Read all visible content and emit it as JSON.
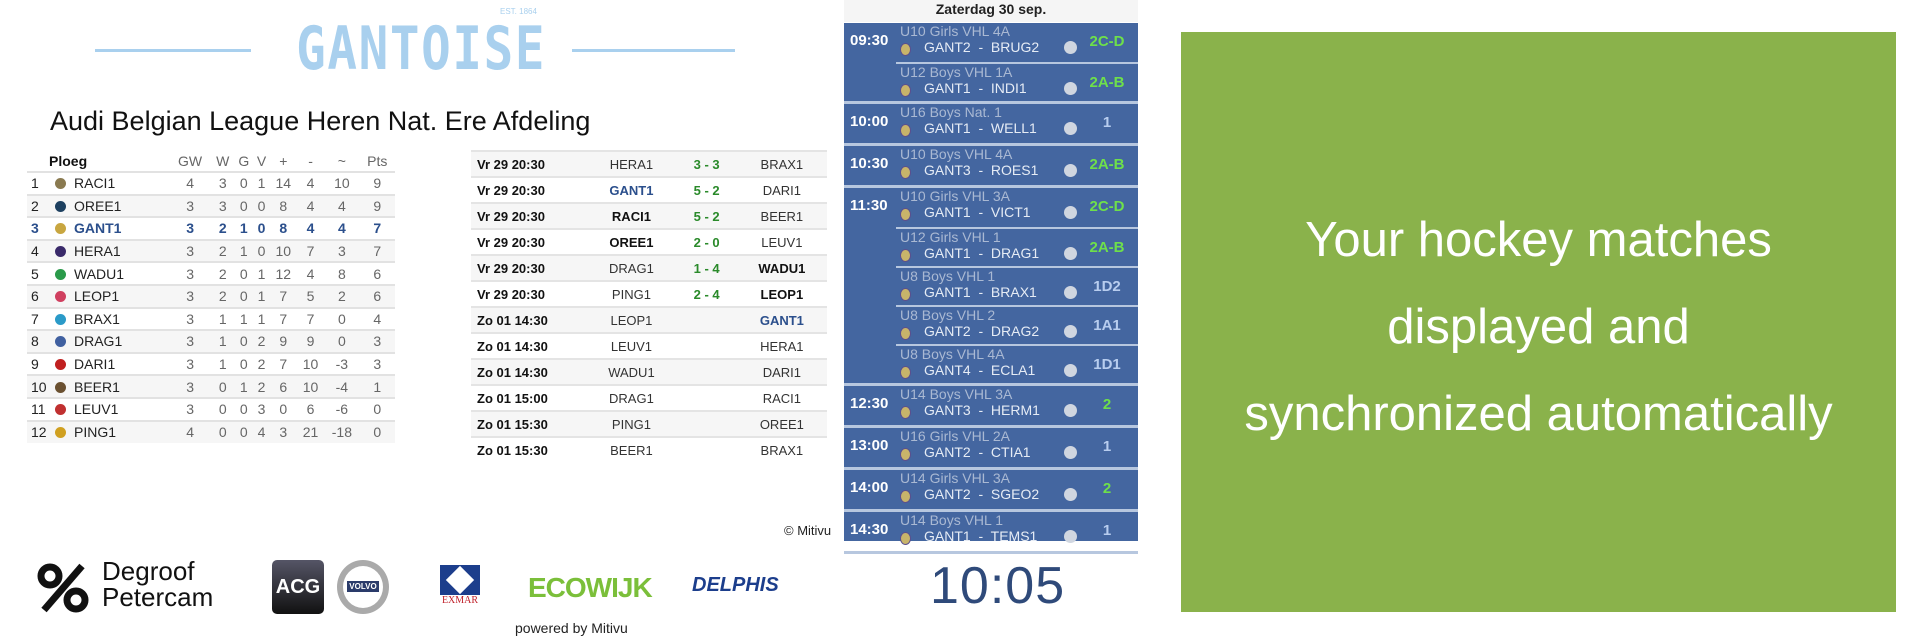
{
  "header": {
    "logo_text": "GANTOISE",
    "logo_est": "EST. 1864",
    "league_title": "Audi Belgian League Heren Nat. Ere Afdeling"
  },
  "standings": {
    "columns": [
      "Ploeg",
      "GW",
      "W",
      "G",
      "V",
      "+",
      "-",
      "~",
      "Pts"
    ],
    "highlight_team": "GANT1",
    "rows": [
      [
        "1",
        "RACI1",
        "4",
        "3",
        "0",
        "1",
        "14",
        "4",
        "10",
        "9"
      ],
      [
        "2",
        "OREE1",
        "3",
        "3",
        "0",
        "0",
        "8",
        "4",
        "4",
        "9"
      ],
      [
        "3",
        "GANT1",
        "3",
        "2",
        "1",
        "0",
        "8",
        "4",
        "4",
        "7"
      ],
      [
        "4",
        "HERA1",
        "3",
        "2",
        "1",
        "0",
        "10",
        "7",
        "3",
        "7"
      ],
      [
        "5",
        "WADU1",
        "3",
        "2",
        "0",
        "1",
        "12",
        "4",
        "8",
        "6"
      ],
      [
        "6",
        "LEOP1",
        "3",
        "2",
        "0",
        "1",
        "7",
        "5",
        "2",
        "6"
      ],
      [
        "7",
        "BRAX1",
        "3",
        "1",
        "1",
        "1",
        "7",
        "7",
        "0",
        "4"
      ],
      [
        "8",
        "DRAG1",
        "3",
        "1",
        "0",
        "2",
        "9",
        "9",
        "0",
        "3"
      ],
      [
        "9",
        "DARI1",
        "3",
        "1",
        "0",
        "2",
        "7",
        "10",
        "-3",
        "3"
      ],
      [
        "10",
        "BEER1",
        "3",
        "0",
        "1",
        "2",
        "6",
        "10",
        "-4",
        "1"
      ],
      [
        "11",
        "LEUV1",
        "3",
        "0",
        "0",
        "3",
        "0",
        "6",
        "-6",
        "0"
      ],
      [
        "12",
        "PING1",
        "4",
        "0",
        "0",
        "4",
        "3",
        "21",
        "-18",
        "0"
      ]
    ]
  },
  "results": [
    {
      "date": "Vr 29 20:30",
      "home": "HERA1",
      "score": "3 - 3",
      "away": "BRAX1",
      "winner": ""
    },
    {
      "date": "Vr 29 20:30",
      "home": "GANT1",
      "score": "5 - 2",
      "away": "DARI1",
      "winner": "home"
    },
    {
      "date": "Vr 29 20:30",
      "home": "RACI1",
      "score": "5 - 2",
      "away": "BEER1",
      "winner": "home"
    },
    {
      "date": "Vr 29 20:30",
      "home": "OREE1",
      "score": "2 - 0",
      "away": "LEUV1",
      "winner": "home"
    },
    {
      "date": "Vr 29 20:30",
      "home": "DRAG1",
      "score": "1 - 4",
      "away": "WADU1",
      "winner": "away"
    },
    {
      "date": "Vr 29 20:30",
      "home": "PING1",
      "score": "2 - 4",
      "away": "LEOP1",
      "winner": "away"
    },
    {
      "date": "Zo 01 14:30",
      "home": "LEOP1",
      "score": "",
      "away": "GANT1",
      "winner": ""
    },
    {
      "date": "Zo 01 14:30",
      "home": "LEUV1",
      "score": "",
      "away": "HERA1",
      "winner": ""
    },
    {
      "date": "Zo 01 14:30",
      "home": "WADU1",
      "score": "",
      "away": "DARI1",
      "winner": ""
    },
    {
      "date": "Zo 01 15:00",
      "home": "DRAG1",
      "score": "",
      "away": "RACI1",
      "winner": ""
    },
    {
      "date": "Zo 01 15:30",
      "home": "PING1",
      "score": "",
      "away": "OREE1",
      "winner": ""
    },
    {
      "date": "Zo 01 15:30",
      "home": "BEER1",
      "score": "",
      "away": "BRAX1",
      "winner": ""
    }
  ],
  "copyright": "© Mitivu",
  "schedule": {
    "day": "Zaterdag 30 sep.",
    "groups": [
      {
        "time": "09:30",
        "matches": [
          {
            "cat": "U10 Girls VHL 4A",
            "home": "GANT2",
            "away": "BRUG2",
            "field": "2C-D",
            "fc": "green"
          },
          {
            "cat": "U12 Boys VHL 1A",
            "home": "GANT1",
            "away": "INDI1",
            "field": "2A-B",
            "fc": "green"
          }
        ]
      },
      {
        "time": "10:00",
        "matches": [
          {
            "cat": "U16 Boys Nat. 1",
            "home": "GANT1",
            "away": "WELL1",
            "field": "1",
            "fc": "blue"
          }
        ]
      },
      {
        "time": "10:30",
        "matches": [
          {
            "cat": "U10 Boys VHL 4A",
            "home": "GANT3",
            "away": "ROES1",
            "field": "2A-B",
            "fc": "green"
          }
        ]
      },
      {
        "time": "11:30",
        "matches": [
          {
            "cat": "U10 Girls VHL 3A",
            "home": "GANT1",
            "away": "VICT1",
            "field": "2C-D",
            "fc": "green"
          },
          {
            "cat": "U12 Girls VHL 1",
            "home": "GANT1",
            "away": "DRAG1",
            "field": "2A-B",
            "fc": "green"
          },
          {
            "cat": "U8 Boys VHL 1",
            "home": "GANT1",
            "away": "BRAX1",
            "field": "1D2",
            "fc": "blue"
          },
          {
            "cat": "U8 Boys VHL 2",
            "home": "GANT2",
            "away": "DRAG2",
            "field": "1A1",
            "fc": "blue"
          },
          {
            "cat": "U8 Boys VHL 4A",
            "home": "GANT4",
            "away": "ECLA1",
            "field": "1D1",
            "fc": "blue"
          }
        ]
      },
      {
        "time": "12:30",
        "matches": [
          {
            "cat": "U14 Boys VHL 3A",
            "home": "GANT3",
            "away": "HERM1",
            "field": "2",
            "fc": "green"
          }
        ]
      },
      {
        "time": "13:00",
        "matches": [
          {
            "cat": "U16 Girls VHL 2A",
            "home": "GANT2",
            "away": "CTIA1",
            "field": "1",
            "fc": "blue"
          }
        ]
      },
      {
        "time": "14:00",
        "matches": [
          {
            "cat": "U14 Girls VHL 3A",
            "home": "GANT2",
            "away": "SGEO2",
            "field": "2",
            "fc": "green"
          }
        ]
      },
      {
        "time": "14:30",
        "matches": [
          {
            "cat": "U14 Boys VHL 1",
            "home": "GANT1",
            "away": "TEMS1",
            "field": "1",
            "fc": "blue"
          }
        ]
      }
    ]
  },
  "clock": "10:05",
  "promo": {
    "lines": [
      "Your hockey matches",
      "displayed and",
      "synchronized automatically"
    ]
  },
  "sponsors": [
    "Degroof Petercam",
    "ACG",
    "VOLVO",
    "EXMAR",
    "ECOWIJK",
    "DELPHIS"
  ],
  "powered_by": "powered by Mitivu",
  "colors": {
    "logo": "#a9d0ee",
    "schedule_bg": "#4466a0",
    "field_green": "#6ee04a",
    "field_blue": "#b8cdef",
    "promo_bg": "#8ab24b",
    "highlight": "#2b4f8c",
    "score": "#2a8a2a"
  }
}
